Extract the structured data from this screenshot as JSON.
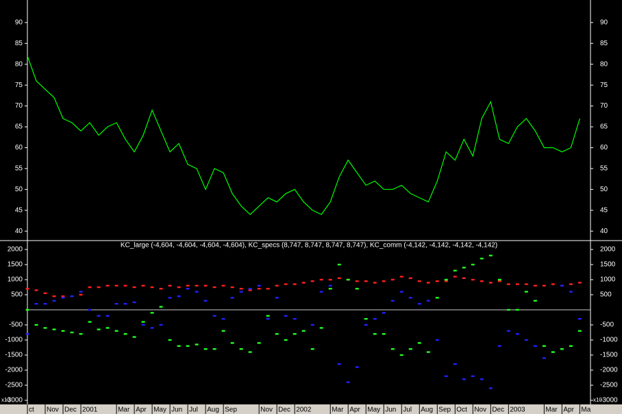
{
  "chart_data": [
    {
      "type": "line",
      "xlim": [
        0,
        31.6
      ],
      "ylim": [
        37.9,
        95.4
      ],
      "yticks": [
        40,
        45,
        50,
        55,
        60,
        65,
        70,
        75,
        80,
        85,
        90
      ],
      "color": "#00ff00",
      "x": [
        0,
        0.5,
        1,
        1.5,
        2,
        2.5,
        3,
        3.5,
        4,
        4.5,
        5,
        5.5,
        6,
        6.5,
        7,
        7.5,
        8,
        8.5,
        9,
        9.5,
        10,
        10.5,
        11,
        11.5,
        12,
        12.5,
        13,
        13.5,
        14,
        14.5,
        15,
        15.5,
        16,
        16.5,
        17,
        17.5,
        18,
        18.5,
        19,
        19.5,
        20,
        20.5,
        21,
        21.5,
        22,
        22.5,
        23,
        23.5,
        24,
        24.5,
        25,
        25.5,
        26,
        26.5,
        27,
        27.5,
        28,
        28.5,
        29,
        29.5,
        30,
        30.5,
        31
      ],
      "values": [
        82,
        76,
        74,
        72,
        67,
        66,
        64,
        66,
        63,
        65,
        66,
        62,
        59,
        63,
        69,
        64,
        59,
        61,
        56,
        55,
        50,
        55,
        54,
        49,
        46,
        44,
        46,
        48,
        47,
        49,
        50,
        47,
        45,
        44,
        47,
        53,
        57,
        54,
        51,
        52,
        50,
        50,
        51,
        49,
        48,
        47,
        52,
        59,
        57,
        62,
        58,
        67,
        71,
        62,
        61,
        65,
        67,
        64,
        60,
        60,
        59,
        60,
        67
      ]
    },
    {
      "type": "scatter",
      "legend": "KC_large (-4,604, -4,604, -4,604, -4,604), KC_specs (8,747, 8,747, 8,747, 8,747), KC_comm (-4,142, -4,142, -4,142, -4,142)",
      "scale_label": "x10",
      "xlim": [
        0,
        31.6
      ],
      "ylim": [
        -3136,
        2273
      ],
      "yticks": [
        2000,
        1500,
        1000,
        500,
        -500,
        -1000,
        -1500,
        -2000,
        -2500,
        -3000
      ],
      "reference_line": 0,
      "xticks": [
        {
          "value": 0,
          "label": "ct"
        },
        {
          "value": 1,
          "label": "Nov"
        },
        {
          "value": 2,
          "label": "Dec"
        },
        {
          "value": 3,
          "label": "2001"
        },
        {
          "value": 5,
          "label": "Mar"
        },
        {
          "value": 6,
          "label": "Apr"
        },
        {
          "value": 7,
          "label": "May"
        },
        {
          "value": 8,
          "label": "Jun"
        },
        {
          "value": 9,
          "label": "Jul"
        },
        {
          "value": 10,
          "label": "Aug"
        },
        {
          "value": 11,
          "label": "Sep"
        },
        {
          "value": 13,
          "label": "Nov"
        },
        {
          "value": 14,
          "label": "Dec"
        },
        {
          "value": 15,
          "label": "2002"
        },
        {
          "value": 17,
          "label": "Mar"
        },
        {
          "value": 18,
          "label": "Apr"
        },
        {
          "value": 19,
          "label": "May"
        },
        {
          "value": 20,
          "label": "Jun"
        },
        {
          "value": 21,
          "label": "Jul"
        },
        {
          "value": 22,
          "label": "Aug"
        },
        {
          "value": 23,
          "label": "Sep"
        },
        {
          "value": 24,
          "label": "Oct"
        },
        {
          "value": 25,
          "label": "Nov"
        },
        {
          "value": 26,
          "label": "Dec"
        },
        {
          "value": 27,
          "label": "2003"
        },
        {
          "value": 29,
          "label": "Mar"
        },
        {
          "value": 30,
          "label": "Apr"
        },
        {
          "value": 31,
          "label": "Ma"
        }
      ],
      "x": [
        0,
        0.5,
        1,
        1.5,
        2,
        2.5,
        3,
        3.5,
        4,
        4.5,
        5,
        5.5,
        6,
        6.5,
        7,
        7.5,
        8,
        8.5,
        9,
        9.5,
        10,
        10.5,
        11,
        11.5,
        12,
        12.5,
        13,
        13.5,
        14,
        14.5,
        15,
        15.5,
        16,
        16.5,
        17,
        17.5,
        18,
        18.5,
        19,
        19.5,
        20,
        20.5,
        21,
        21.5,
        22,
        22.5,
        23,
        23.5,
        24,
        24.5,
        25,
        25.5,
        26,
        26.5,
        27,
        27.5,
        28,
        28.5,
        29,
        29.5,
        30,
        30.5,
        31
      ],
      "series": [
        {
          "color": "#ff2020",
          "values": [
            700,
            650,
            550,
            450,
            450,
            450,
            500,
            750,
            750,
            800,
            800,
            800,
            750,
            800,
            750,
            700,
            800,
            750,
            800,
            800,
            800,
            750,
            800,
            750,
            700,
            650,
            700,
            700,
            800,
            850,
            850,
            900,
            950,
            1000,
            1000,
            1050,
            1000,
            950,
            950,
            900,
            950,
            1000,
            1100,
            1050,
            950,
            900,
            950,
            950,
            1100,
            1050,
            1000,
            950,
            900,
            950,
            850,
            850,
            850,
            800,
            800,
            850,
            800,
            850,
            900
          ]
        },
        {
          "color": "#2020ff",
          "values": [
            -800,
            200,
            200,
            300,
            400,
            450,
            600,
            0,
            -200,
            -200,
            200,
            200,
            250,
            -500,
            -600,
            -500,
            400,
            450,
            700,
            600,
            300,
            -200,
            -300,
            400,
            600,
            700,
            800,
            -300,
            400,
            -200,
            -300,
            -700,
            -500,
            600,
            800,
            -1800,
            -2400,
            -1900,
            -500,
            -300,
            -100,
            300,
            600,
            400,
            200,
            300,
            -1000,
            -2200,
            -1800,
            -2300,
            -2200,
            -2300,
            -2600,
            -1200,
            -700,
            -800,
            -1000,
            -1200,
            -1600,
            -1400,
            800,
            600,
            -300
          ]
        },
        {
          "color": "#20ff20",
          "values": [
            0,
            -500,
            -600,
            -650,
            -700,
            -750,
            -800,
            -400,
            -650,
            -600,
            -700,
            -800,
            -900,
            -400,
            -100,
            100,
            -1000,
            -1200,
            -1200,
            -1150,
            -1300,
            -1300,
            -700,
            -1100,
            -1300,
            -1400,
            -1100,
            -200,
            -800,
            -1000,
            -800,
            -700,
            -1300,
            -600,
            700,
            1500,
            1000,
            700,
            -300,
            -800,
            -800,
            -1300,
            -1500,
            -1300,
            -1100,
            -1400,
            400,
            1000,
            1300,
            1400,
            1500,
            1700,
            1800,
            1000,
            0,
            0,
            600,
            300,
            -1200,
            -1400,
            -1300,
            -1200,
            -700
          ]
        }
      ]
    }
  ]
}
